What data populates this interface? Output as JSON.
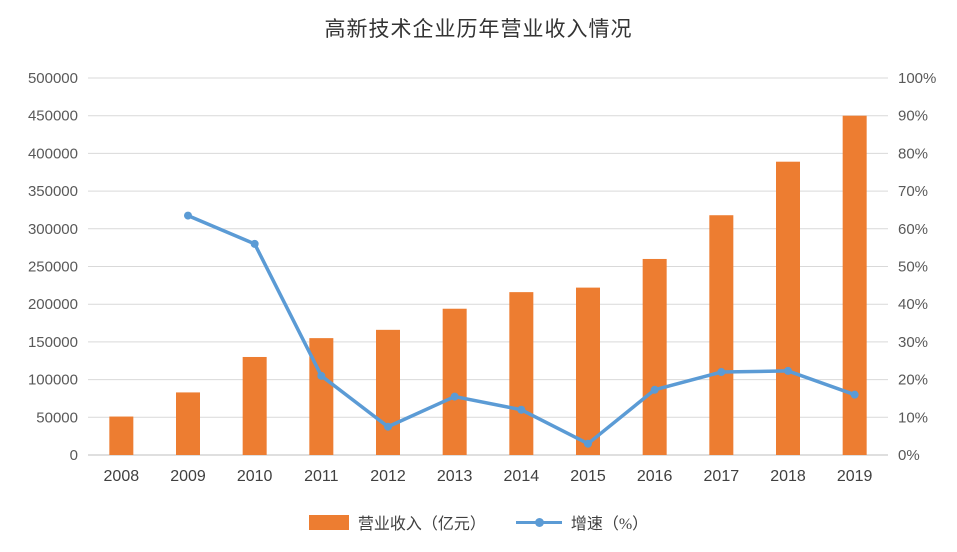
{
  "title": "高新技术企业历年营业收入情况",
  "legend": [
    {
      "label": "营业收入（亿元）",
      "type": "bar",
      "color": "#ED7D31"
    },
    {
      "label": "增速（%）",
      "type": "line",
      "color": "#5B9BD5"
    }
  ],
  "colors": {
    "bar": "#ED7D31",
    "line": "#5B9BD5",
    "grid": "#D9D9D9",
    "axis_line": "#BFBFBF",
    "axis_text": "#595959",
    "category_text": "#404040",
    "title_text": "#333333",
    "background": "#FFFFFF"
  },
  "chart_data": {
    "type": "bar",
    "subtype": "bar+line dual axis",
    "title": "高新技术企业历年营业收入情况",
    "categories": [
      "2008",
      "2009",
      "2010",
      "2011",
      "2012",
      "2013",
      "2014",
      "2015",
      "2016",
      "2017",
      "2018",
      "2019"
    ],
    "series": [
      {
        "name": "营业收入（亿元）",
        "type": "bar",
        "axis": "left",
        "color": "#ED7D31",
        "values": [
          51000,
          83000,
          130000,
          155000,
          166000,
          194000,
          216000,
          222000,
          260000,
          318000,
          389000,
          450000
        ]
      },
      {
        "name": "增速（%）",
        "type": "line",
        "axis": "right",
        "color": "#5B9BD5",
        "values": [
          null,
          63.5,
          56,
          21,
          7.5,
          15.5,
          12,
          3,
          17.3,
          22,
          22.3,
          16
        ]
      }
    ],
    "left_axis": {
      "min": 0,
      "max": 500000,
      "step": 50000,
      "tick_labels": [
        "0",
        "50000",
        "100000",
        "150000",
        "200000",
        "250000",
        "300000",
        "350000",
        "400000",
        "450000",
        "500000"
      ]
    },
    "right_axis": {
      "min": 0,
      "max": 100,
      "step": 10,
      "tick_labels": [
        "0%",
        "10%",
        "20%",
        "30%",
        "40%",
        "50%",
        "60%",
        "70%",
        "80%",
        "90%",
        "100%"
      ]
    },
    "grid": true,
    "legend_position": "bottom",
    "xlabel": "",
    "ylabel_left": "",
    "ylabel_right": ""
  }
}
